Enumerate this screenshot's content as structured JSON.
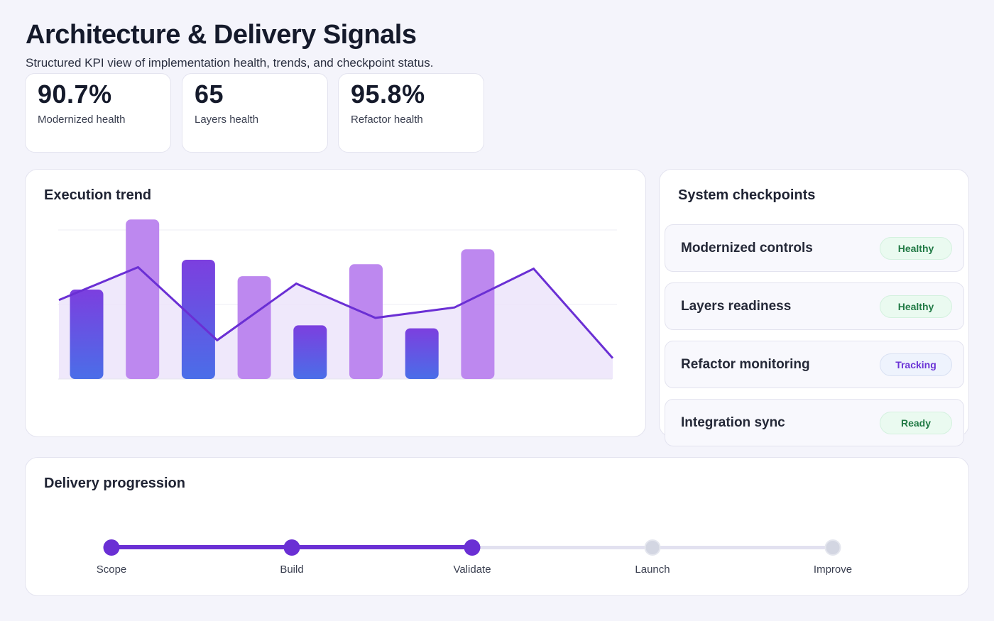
{
  "header": {
    "title": "Architecture & Delivery Signals",
    "subtitle": "Structured KPI view of implementation health, trends, and checkpoint status."
  },
  "kpis": [
    {
      "value": "90.7%",
      "label": "Modernized health"
    },
    {
      "value": "65",
      "label": "Layers health"
    },
    {
      "value": "95.8%",
      "label": "Refactor health"
    }
  ],
  "trend": {
    "title": "Execution trend"
  },
  "chart_data": {
    "type": "bar",
    "title": "Execution trend",
    "ylim": [
      0,
      100
    ],
    "grid": true,
    "bars": [
      60,
      107,
      80,
      69,
      36,
      77,
      34,
      87
    ],
    "line": [
      53,
      75,
      26,
      64,
      41,
      48,
      74,
      14
    ],
    "colors": {
      "bar_dark_top": "#7c3fdf",
      "bar_dark_bottom": "#4a6ee8",
      "bar_light": "#bd88ef",
      "line": "#6a2fd4",
      "area": "#ece4fa"
    }
  },
  "checkpoints": {
    "title": "System checkpoints",
    "items": [
      {
        "name": "Modernized controls",
        "status": "Healthy",
        "tone": "green"
      },
      {
        "name": "Layers readiness",
        "status": "Healthy",
        "tone": "green"
      },
      {
        "name": "Refactor monitoring",
        "status": "Tracking",
        "tone": "purple"
      },
      {
        "name": "Integration sync",
        "status": "Ready",
        "tone": "green"
      }
    ]
  },
  "progression": {
    "title": "Delivery progression",
    "completed": 3,
    "steps": [
      "Scope",
      "Build",
      "Validate",
      "Launch",
      "Improve"
    ],
    "colors": {
      "done": "#6a2fd4",
      "pending": "#d3d6e2"
    }
  }
}
